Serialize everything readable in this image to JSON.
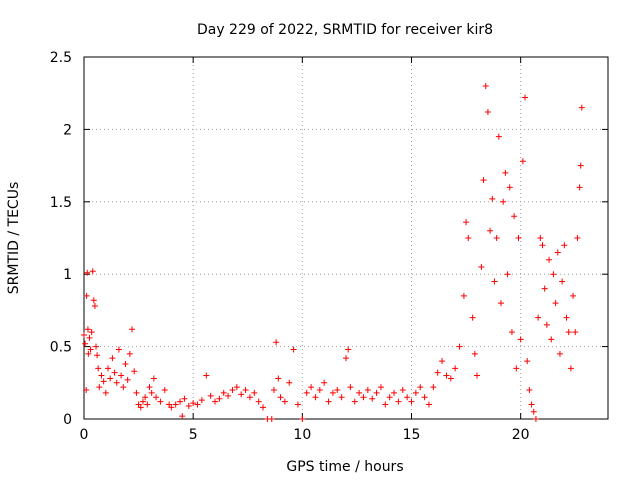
{
  "chart_data": {
    "type": "scatter",
    "title": "Day 229 of 2022, SRMTID for receiver kir8",
    "xlabel": "GPS time / hours",
    "ylabel": "SRMTID / TECUs",
    "xlim": [
      0,
      24
    ],
    "ylim": [
      0,
      2.5
    ],
    "grid": true,
    "marker": "+",
    "color": "#ff0000",
    "xticks": [
      {
        "value": 0,
        "label": "0"
      },
      {
        "value": 5,
        "label": "5"
      },
      {
        "value": 10,
        "label": "10"
      },
      {
        "value": 15,
        "label": "15"
      },
      {
        "value": 20,
        "label": "20"
      }
    ],
    "yticks": [
      {
        "value": 0,
        "label": "0"
      },
      {
        "value": 0.5,
        "label": "0.5"
      },
      {
        "value": 1,
        "label": "1"
      },
      {
        "value": 1.5,
        "label": "1.5"
      },
      {
        "value": 2,
        "label": "2"
      },
      {
        "value": 2.5,
        "label": "2.5"
      }
    ],
    "series": [
      {
        "name": "SRMTID",
        "points": [
          [
            0.0,
            0.58
          ],
          [
            0.05,
            0.52
          ],
          [
            0.1,
            0.2
          ],
          [
            0.12,
            0.85
          ],
          [
            0.15,
            1.01
          ],
          [
            0.18,
            0.62
          ],
          [
            0.2,
            0.45
          ],
          [
            0.25,
            0.56
          ],
          [
            0.3,
            0.48
          ],
          [
            0.35,
            0.6
          ],
          [
            0.4,
            1.02
          ],
          [
            0.45,
            0.82
          ],
          [
            0.5,
            0.78
          ],
          [
            0.55,
            0.5
          ],
          [
            0.6,
            0.44
          ],
          [
            0.65,
            0.35
          ],
          [
            0.7,
            0.22
          ],
          [
            0.8,
            0.3
          ],
          [
            0.9,
            0.26
          ],
          [
            1.0,
            0.18
          ],
          [
            1.1,
            0.35
          ],
          [
            1.2,
            0.28
          ],
          [
            1.3,
            0.42
          ],
          [
            1.4,
            0.32
          ],
          [
            1.5,
            0.25
          ],
          [
            1.6,
            0.48
          ],
          [
            1.7,
            0.3
          ],
          [
            1.8,
            0.22
          ],
          [
            1.9,
            0.38
          ],
          [
            2.0,
            0.27
          ],
          [
            2.1,
            0.45
          ],
          [
            2.2,
            0.62
          ],
          [
            2.3,
            0.33
          ],
          [
            2.4,
            0.18
          ],
          [
            2.5,
            0.1
          ],
          [
            2.6,
            0.08
          ],
          [
            2.7,
            0.12
          ],
          [
            2.8,
            0.15
          ],
          [
            2.9,
            0.1
          ],
          [
            3.0,
            0.22
          ],
          [
            3.1,
            0.18
          ],
          [
            3.2,
            0.28
          ],
          [
            3.3,
            0.15
          ],
          [
            3.5,
            0.12
          ],
          [
            3.7,
            0.2
          ],
          [
            3.9,
            0.1
          ],
          [
            4.0,
            0.08
          ],
          [
            4.2,
            0.1
          ],
          [
            4.4,
            0.12
          ],
          [
            4.5,
            0.02
          ],
          [
            4.6,
            0.14
          ],
          [
            4.8,
            0.09
          ],
          [
            5.0,
            0.11
          ],
          [
            5.2,
            0.1
          ],
          [
            5.4,
            0.13
          ],
          [
            5.6,
            0.3
          ],
          [
            5.8,
            0.16
          ],
          [
            6.0,
            0.12
          ],
          [
            6.2,
            0.14
          ],
          [
            6.4,
            0.18
          ],
          [
            6.6,
            0.16
          ],
          [
            6.8,
            0.2
          ],
          [
            7.0,
            0.22
          ],
          [
            7.2,
            0.17
          ],
          [
            7.4,
            0.2
          ],
          [
            7.6,
            0.15
          ],
          [
            7.8,
            0.18
          ],
          [
            8.0,
            0.12
          ],
          [
            8.2,
            0.08
          ],
          [
            8.4,
            0.0
          ],
          [
            8.6,
            0.0
          ],
          [
            8.7,
            0.2
          ],
          [
            8.8,
            0.53
          ],
          [
            8.9,
            0.28
          ],
          [
            9.0,
            0.15
          ],
          [
            9.2,
            0.12
          ],
          [
            9.4,
            0.25
          ],
          [
            9.6,
            0.48
          ],
          [
            9.8,
            0.1
          ],
          [
            10.0,
            0.0
          ],
          [
            10.2,
            0.18
          ],
          [
            10.4,
            0.22
          ],
          [
            10.6,
            0.15
          ],
          [
            10.8,
            0.2
          ],
          [
            11.0,
            0.25
          ],
          [
            11.2,
            0.12
          ],
          [
            11.4,
            0.18
          ],
          [
            11.6,
            0.2
          ],
          [
            11.8,
            0.15
          ],
          [
            12.0,
            0.42
          ],
          [
            12.1,
            0.48
          ],
          [
            12.2,
            0.22
          ],
          [
            12.4,
            0.12
          ],
          [
            12.6,
            0.18
          ],
          [
            12.8,
            0.15
          ],
          [
            13.0,
            0.2
          ],
          [
            13.2,
            0.14
          ],
          [
            13.4,
            0.18
          ],
          [
            13.6,
            0.22
          ],
          [
            13.8,
            0.1
          ],
          [
            14.0,
            0.15
          ],
          [
            14.2,
            0.18
          ],
          [
            14.4,
            0.12
          ],
          [
            14.6,
            0.2
          ],
          [
            14.8,
            0.15
          ],
          [
            15.0,
            0.12
          ],
          [
            15.2,
            0.18
          ],
          [
            15.4,
            0.22
          ],
          [
            15.6,
            0.15
          ],
          [
            15.8,
            0.1
          ],
          [
            16.0,
            0.22
          ],
          [
            16.2,
            0.32
          ],
          [
            16.4,
            0.4
          ],
          [
            16.6,
            0.3
          ],
          [
            16.8,
            0.28
          ],
          [
            17.0,
            0.35
          ],
          [
            17.2,
            0.5
          ],
          [
            17.4,
            0.85
          ],
          [
            17.5,
            1.36
          ],
          [
            17.6,
            1.25
          ],
          [
            17.8,
            0.7
          ],
          [
            17.9,
            0.45
          ],
          [
            18.0,
            0.3
          ],
          [
            18.2,
            1.05
          ],
          [
            18.3,
            1.65
          ],
          [
            18.4,
            2.3
          ],
          [
            18.5,
            2.12
          ],
          [
            18.6,
            1.3
          ],
          [
            18.7,
            1.52
          ],
          [
            18.8,
            0.95
          ],
          [
            18.9,
            1.25
          ],
          [
            19.0,
            1.95
          ],
          [
            19.1,
            0.8
          ],
          [
            19.2,
            1.5
          ],
          [
            19.3,
            1.7
          ],
          [
            19.4,
            1.0
          ],
          [
            19.5,
            1.6
          ],
          [
            19.6,
            0.6
          ],
          [
            19.7,
            1.4
          ],
          [
            19.8,
            0.35
          ],
          [
            19.9,
            1.25
          ],
          [
            20.0,
            0.55
          ],
          [
            20.1,
            1.78
          ],
          [
            20.2,
            2.22
          ],
          [
            20.3,
            0.4
          ],
          [
            20.4,
            0.2
          ],
          [
            20.5,
            0.1
          ],
          [
            20.6,
            0.05
          ],
          [
            20.7,
            0.0
          ],
          [
            20.8,
            0.7
          ],
          [
            20.9,
            1.25
          ],
          [
            21.0,
            1.2
          ],
          [
            21.1,
            0.9
          ],
          [
            21.2,
            0.65
          ],
          [
            21.3,
            1.1
          ],
          [
            21.4,
            0.55
          ],
          [
            21.5,
            1.0
          ],
          [
            21.6,
            0.8
          ],
          [
            21.7,
            1.15
          ],
          [
            21.8,
            0.45
          ],
          [
            21.9,
            0.95
          ],
          [
            22.0,
            1.2
          ],
          [
            22.1,
            0.7
          ],
          [
            22.2,
            0.6
          ],
          [
            22.3,
            0.35
          ],
          [
            22.4,
            0.85
          ],
          [
            22.5,
            0.6
          ],
          [
            22.6,
            1.25
          ],
          [
            22.7,
            1.6
          ],
          [
            22.75,
            1.75
          ],
          [
            22.8,
            2.15
          ]
        ]
      }
    ]
  }
}
